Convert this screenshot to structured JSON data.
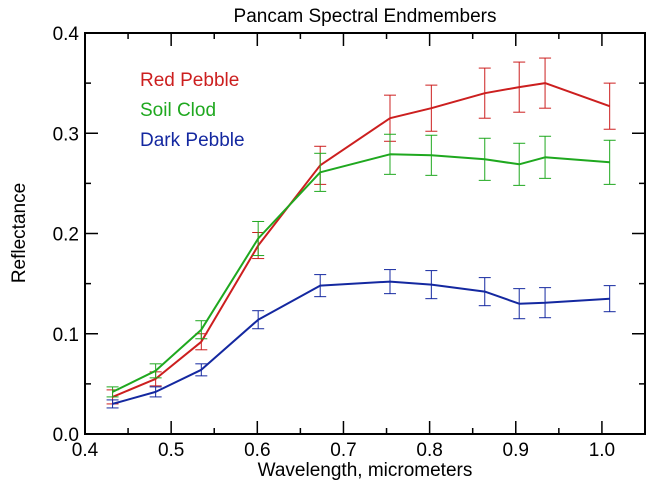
{
  "chart_data": {
    "type": "line",
    "title": "Pancam Spectral Endmembers",
    "xlabel": "Wavelength, micrometers",
    "ylabel": "Reflectance",
    "xlim": [
      0.4,
      1.05
    ],
    "ylim": [
      0.0,
      0.4
    ],
    "x_ticks": [
      0.4,
      0.5,
      0.6,
      0.7,
      0.8,
      0.9,
      1.0
    ],
    "x_tick_labels": [
      "0.4",
      "0.5",
      "0.6",
      "0.7",
      "0.8",
      "0.9",
      "1.0"
    ],
    "y_ticks": [
      0.0,
      0.1,
      0.2,
      0.3,
      0.4
    ],
    "y_tick_labels": [
      "0.0",
      "0.1",
      "0.2",
      "0.3",
      "0.4"
    ],
    "grid": false,
    "legend_position": "top-left",
    "x": [
      0.432,
      0.482,
      0.535,
      0.601,
      0.673,
      0.754,
      0.802,
      0.864,
      0.904,
      0.934,
      1.009
    ],
    "series": [
      {
        "name": "Red Pebble",
        "color": "#cc1f1f",
        "values": [
          0.037,
          0.055,
          0.092,
          0.188,
          0.268,
          0.315,
          0.325,
          0.34,
          0.346,
          0.35,
          0.327
        ],
        "errors": [
          0.007,
          0.007,
          0.008,
          0.013,
          0.019,
          0.023,
          0.023,
          0.025,
          0.025,
          0.025,
          0.023
        ]
      },
      {
        "name": "Soil Clod",
        "color": "#1fa81f",
        "values": [
          0.042,
          0.063,
          0.104,
          0.195,
          0.261,
          0.279,
          0.278,
          0.274,
          0.269,
          0.276,
          0.271
        ],
        "errors": [
          0.005,
          0.007,
          0.009,
          0.017,
          0.019,
          0.02,
          0.02,
          0.021,
          0.021,
          0.021,
          0.022
        ]
      },
      {
        "name": "Dark Pebble",
        "color": "#1428a0",
        "values": [
          0.03,
          0.042,
          0.064,
          0.114,
          0.148,
          0.152,
          0.149,
          0.142,
          0.13,
          0.131,
          0.135
        ],
        "errors": [
          0.004,
          0.005,
          0.006,
          0.009,
          0.011,
          0.012,
          0.014,
          0.014,
          0.015,
          0.015,
          0.013
        ]
      }
    ]
  }
}
